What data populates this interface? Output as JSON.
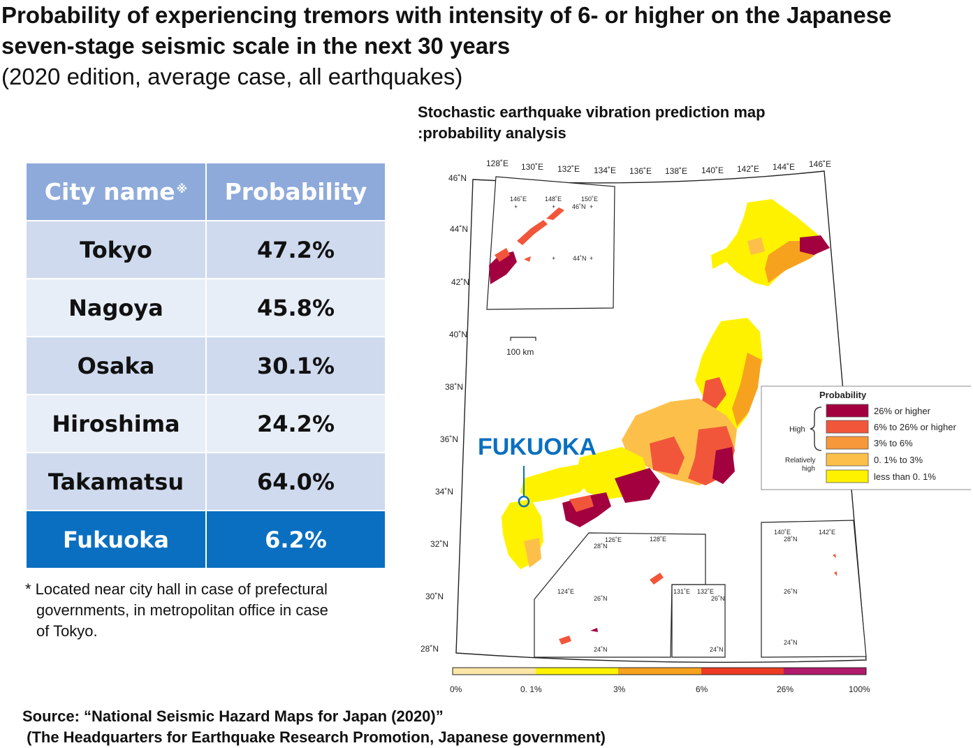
{
  "title": {
    "line1": "Probability of experiencing tremors with intensity of 6- or higher on the Japanese",
    "line2": "seven-stage seismic scale in the next 30 years",
    "subtitle": "(2020 edition, average case, all earthquakes)"
  },
  "table": {
    "header_city": "City name",
    "header_city_mark": "※",
    "header_prob": "Probability",
    "rows": [
      {
        "city": "Tokyo",
        "prob": "47.2%"
      },
      {
        "city": "Nagoya",
        "prob": "45.8%"
      },
      {
        "city": "Osaka",
        "prob": "30.1%"
      },
      {
        "city": "Hiroshima",
        "prob": "24.2%"
      },
      {
        "city": "Takamatsu",
        "prob": "64.0%"
      },
      {
        "city": "Fukuoka",
        "prob": "6.2%"
      }
    ]
  },
  "footnote": {
    "line1": "* Located near city hall in case of prefectural",
    "line2": "governments,  in metropolitan office in case",
    "line3": "of Tokyo."
  },
  "map": {
    "title_line1": "Stochastic earthquake vibration prediction map",
    "title_line2": ":probability analysis",
    "lon_labels": [
      "128˚E",
      "130˚E",
      "132˚E",
      "134˚E",
      "136˚E",
      "138˚E",
      "140˚E",
      "142˚E",
      "144˚E",
      "146˚E"
    ],
    "lat_labels": [
      "46˚N",
      "44˚N",
      "42˚N",
      "40˚N",
      "38˚N",
      "36˚N",
      "34˚N",
      "32˚N",
      "30˚N",
      "28˚N"
    ],
    "scale_bar": "100 km",
    "city_marker": "FUKUOKA",
    "inset_north": {
      "lon": [
        "146˚E",
        "148˚E",
        "150˚E"
      ],
      "lat": [
        "46˚N",
        "44˚N"
      ]
    },
    "inset_south_a": {
      "lon": [
        "126˚E",
        "128˚E",
        "124˚E"
      ],
      "lat": [
        "28˚N",
        "26˚N",
        "24˚N"
      ]
    },
    "inset_south_b": {
      "lon": [
        "131˚E",
        "132˚E"
      ],
      "lat": [
        "26˚N",
        "24˚N"
      ]
    },
    "inset_south_c": {
      "lon": [
        "140˚E",
        "142˚E"
      ],
      "lat": [
        "28˚N",
        "26˚N",
        "24˚N"
      ]
    },
    "legend": {
      "title": "Probability",
      "group_high": "High",
      "group_rel_line1": "Relatively",
      "group_rel_line2": "high",
      "items": [
        {
          "label": "26% or higher",
          "color": "#a3003f"
        },
        {
          "label": "6% to 26% or higher",
          "color": "#f2563a"
        },
        {
          "label": "3% to 6%",
          "color": "#f7983a"
        },
        {
          "label": "0. 1% to 3%",
          "color": "#fcc04a"
        },
        {
          "label": "less than 0. 1%",
          "color": "#fff200"
        }
      ]
    },
    "colorbar": {
      "ticks": [
        "0%",
        "0. 1%",
        "3%",
        "6%",
        "26%",
        "100%"
      ],
      "colors": [
        "#fde6a8",
        "#fff200",
        "#f7a21e",
        "#ee3b23",
        "#b01a6a"
      ]
    }
  },
  "source": {
    "line1": "Source: “National Seismic Hazard Maps for Japan (2020)”",
    "line2": " (The Headquarters for Earthquake Research Promotion, Japanese government)"
  }
}
